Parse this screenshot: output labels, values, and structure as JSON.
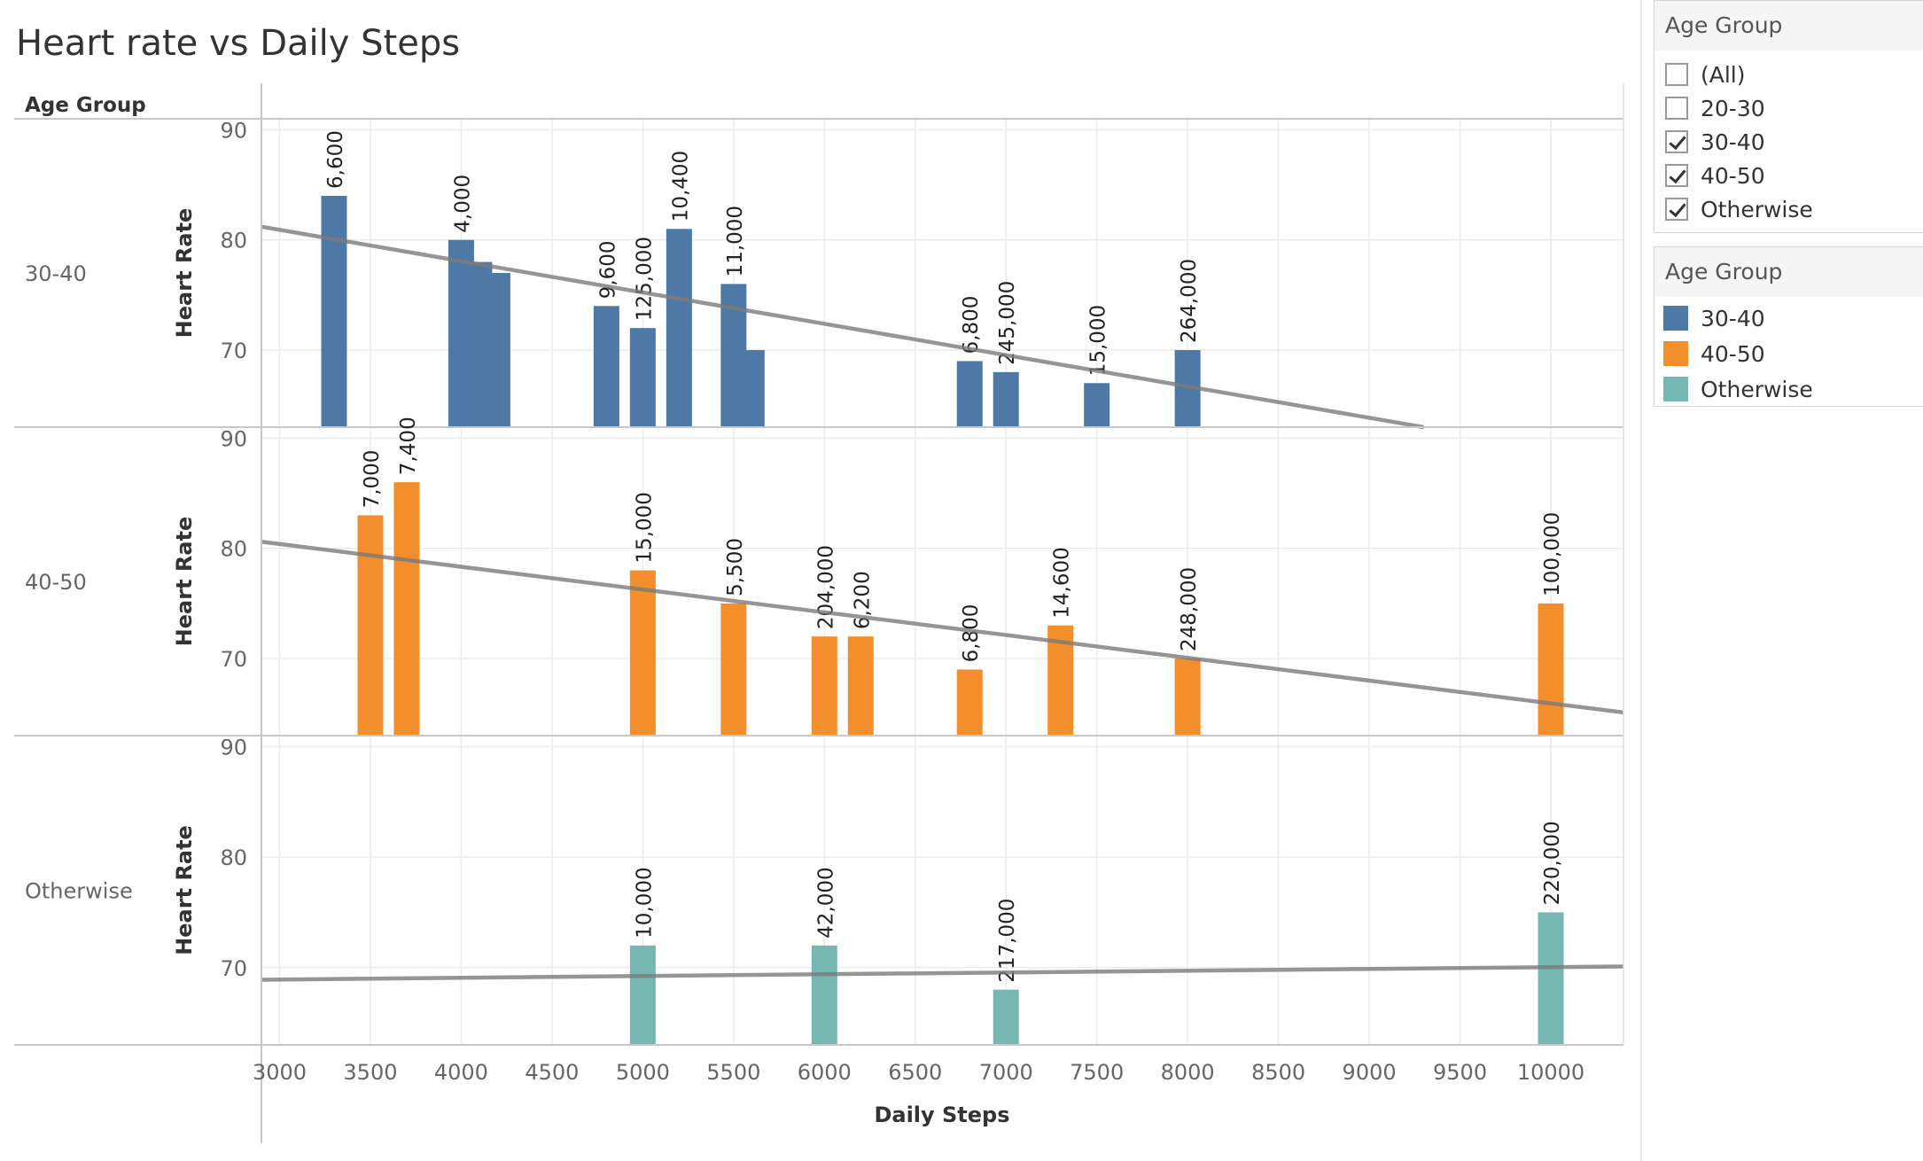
{
  "chart_data": {
    "type": "bar",
    "title": "Heart rate vs Daily Steps",
    "row_header": "Age Group",
    "xlabel": "Daily Steps",
    "ylabel": "Heart Rate",
    "xlim": [
      2900,
      10400
    ],
    "ylim": [
      63,
      91
    ],
    "x_ticks": [
      3000,
      3500,
      4000,
      4500,
      5000,
      5500,
      6000,
      6500,
      7000,
      7500,
      8000,
      8500,
      9000,
      9500,
      10000
    ],
    "y_ticks": [
      70,
      80,
      90
    ],
    "grid": true,
    "trend_lines": true,
    "colors": {
      "30-40": "#4e79a7",
      "40-50": "#f28e2b",
      "Otherwise": "#76b7b2"
    },
    "panels": [
      {
        "group": "30-40",
        "bars": [
          {
            "x": 3300,
            "y": 84,
            "label": "6,600"
          },
          {
            "x": 4000,
            "y": 80,
            "label": "4,000"
          },
          {
            "x": 4100,
            "y": 78,
            "label": ""
          },
          {
            "x": 4200,
            "y": 77,
            "label": ""
          },
          {
            "x": 4800,
            "y": 74,
            "label": "9,600"
          },
          {
            "x": 5000,
            "y": 72,
            "label": "125,000"
          },
          {
            "x": 5200,
            "y": 81,
            "label": "10,400"
          },
          {
            "x": 5500,
            "y": 76,
            "label": "11,000"
          },
          {
            "x": 5600,
            "y": 70,
            "label": ""
          },
          {
            "x": 6800,
            "y": 69,
            "label": "6,800"
          },
          {
            "x": 7000,
            "y": 68,
            "label": "245,000"
          },
          {
            "x": 7500,
            "y": 67,
            "label": "15,000"
          },
          {
            "x": 8000,
            "y": 70,
            "label": "264,000"
          }
        ],
        "trend": {
          "start": [
            2900,
            81.2
          ],
          "end": [
            9300,
            63.0
          ]
        }
      },
      {
        "group": "40-50",
        "bars": [
          {
            "x": 3500,
            "y": 83,
            "label": "7,000"
          },
          {
            "x": 3700,
            "y": 86,
            "label": "7,400"
          },
          {
            "x": 5000,
            "y": 78,
            "label": "15,000"
          },
          {
            "x": 5500,
            "y": 75,
            "label": "5,500"
          },
          {
            "x": 6000,
            "y": 72,
            "label": "204,000"
          },
          {
            "x": 6200,
            "y": 72,
            "label": "6,200"
          },
          {
            "x": 6800,
            "y": 69,
            "label": "6,800"
          },
          {
            "x": 7300,
            "y": 73,
            "label": "14,600"
          },
          {
            "x": 8000,
            "y": 70,
            "label": "248,000"
          },
          {
            "x": 10000,
            "y": 75,
            "label": "100,000"
          }
        ],
        "trend": {
          "start": [
            2900,
            80.6
          ],
          "end": [
            10400,
            65.1
          ]
        }
      },
      {
        "group": "Otherwise",
        "bars": [
          {
            "x": 5000,
            "y": 72,
            "label": "10,000"
          },
          {
            "x": 6000,
            "y": 72,
            "label": "42,000"
          },
          {
            "x": 7000,
            "y": 68,
            "label": "217,000"
          },
          {
            "x": 10000,
            "y": 75,
            "label": "220,000"
          }
        ],
        "trend": {
          "start": [
            2900,
            68.9
          ],
          "end": [
            10400,
            70.1
          ]
        }
      }
    ]
  },
  "filter": {
    "title": "Age Group",
    "items": [
      {
        "label": "(All)",
        "checked": false
      },
      {
        "label": "20-30",
        "checked": false
      },
      {
        "label": "30-40",
        "checked": true
      },
      {
        "label": "40-50",
        "checked": true
      },
      {
        "label": "Otherwise",
        "checked": true
      }
    ]
  },
  "legend": {
    "title": "Age Group",
    "items": [
      {
        "label": "30-40",
        "color": "#4e79a7"
      },
      {
        "label": "40-50",
        "color": "#f28e2b"
      },
      {
        "label": "Otherwise",
        "color": "#76b7b2"
      }
    ]
  }
}
